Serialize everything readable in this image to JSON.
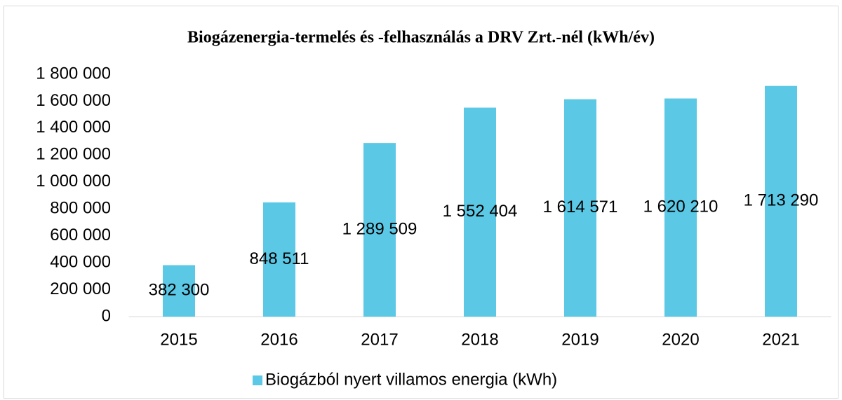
{
  "chart_data": {
    "type": "bar",
    "title": "Biogázenergia-termelés és -felhasználás a DRV Zrt.-nél (kWh/év)",
    "categories": [
      "2015",
      "2016",
      "2017",
      "2018",
      "2019",
      "2020",
      "2021"
    ],
    "series": [
      {
        "name": "Biogázból nyert villamos energia (kWh)",
        "color": "#5bc8e6",
        "values": [
          382300,
          848511,
          1289509,
          1552404,
          1614571,
          1620210,
          1713290
        ],
        "value_labels": [
          "382 300",
          "848 511",
          "1 289 509",
          "1 552 404",
          "1 614 571",
          "1 620 210",
          "1 713 290"
        ]
      }
    ],
    "ylim": [
      0,
      1800000
    ],
    "yticks": [
      0,
      {
        "value": 200000,
        "label": "200 000"
      },
      {
        "value": 400000,
        "label": "400 000"
      },
      {
        "value": 600000,
        "label": "600 000"
      },
      {
        "value": 800000,
        "label": "800 000"
      },
      {
        "value": 1000000,
        "label": "1 000 000"
      },
      {
        "value": 1200000,
        "label": "1 200 000"
      },
      {
        "value": 1400000,
        "label": "1 400 000"
      },
      {
        "value": 1600000,
        "label": "1 600 000"
      },
      {
        "value": 1800000,
        "label": "1 800 000"
      }
    ],
    "grid": false,
    "legend": "bottom"
  }
}
